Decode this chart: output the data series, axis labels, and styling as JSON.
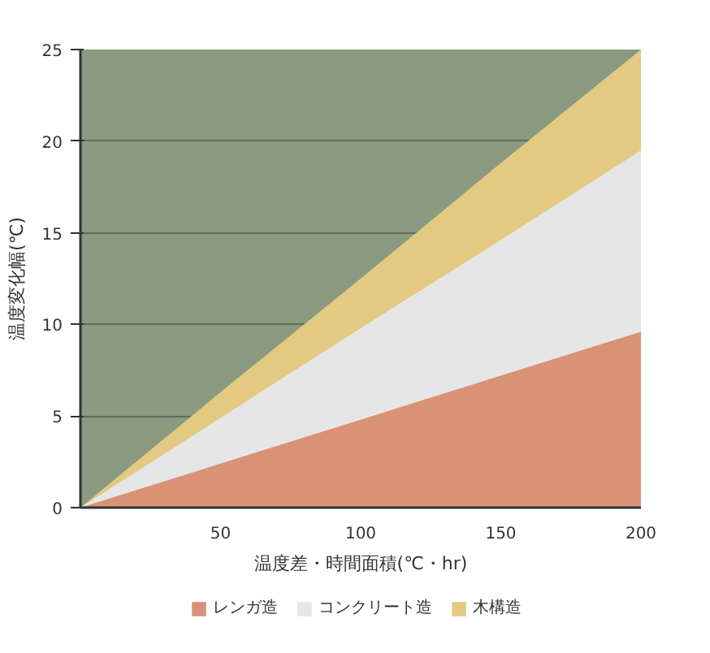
{
  "chart_data": {
    "type": "area",
    "xlabel": "温度差・時間面積(℃・hr)",
    "ylabel": "温度変化幅(℃)",
    "x": [
      0,
      50,
      100,
      150,
      200
    ],
    "series": [
      {
        "name": "レンガ造",
        "color": "#d99276",
        "values": [
          0,
          2.4,
          4.8,
          7.2,
          9.6
        ]
      },
      {
        "name": "コンクリート造",
        "color": "#e6e6e6",
        "values": [
          0,
          4.9,
          9.8,
          14.6,
          19.5
        ]
      },
      {
        "name": "木構造",
        "color": "#e3c982",
        "values": [
          0,
          6.3,
          12.5,
          18.8,
          25
        ]
      }
    ],
    "xlim": [
      0,
      200
    ],
    "ylim": [
      0,
      25
    ],
    "xticks": [
      50,
      100,
      150,
      200
    ],
    "yticks": [
      0,
      5,
      10,
      15,
      20,
      25
    ],
    "grid": "y",
    "legend": "bottom"
  }
}
